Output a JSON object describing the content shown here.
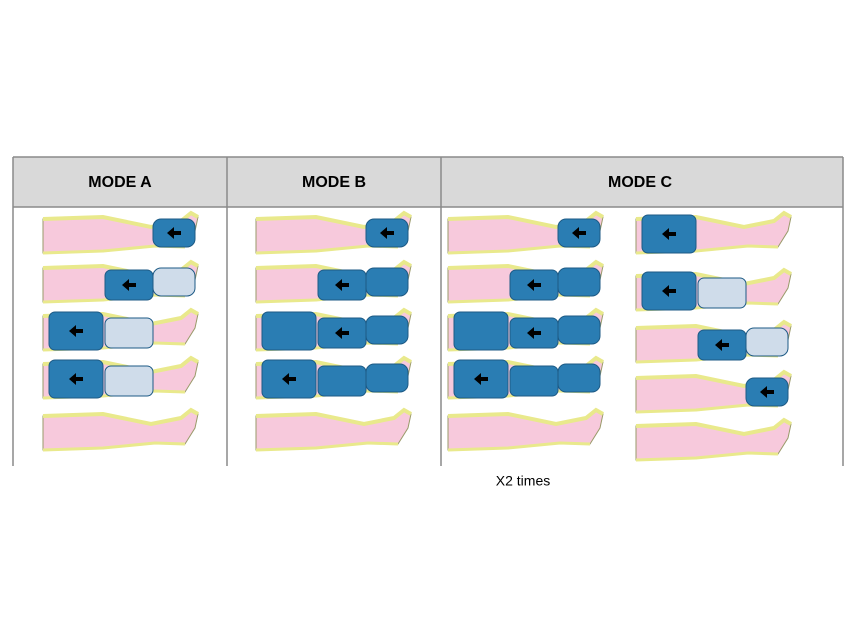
{
  "header": {
    "columns": [
      "MODE A",
      "MODE B",
      "MODE C"
    ]
  },
  "note": "X2 times"
}
